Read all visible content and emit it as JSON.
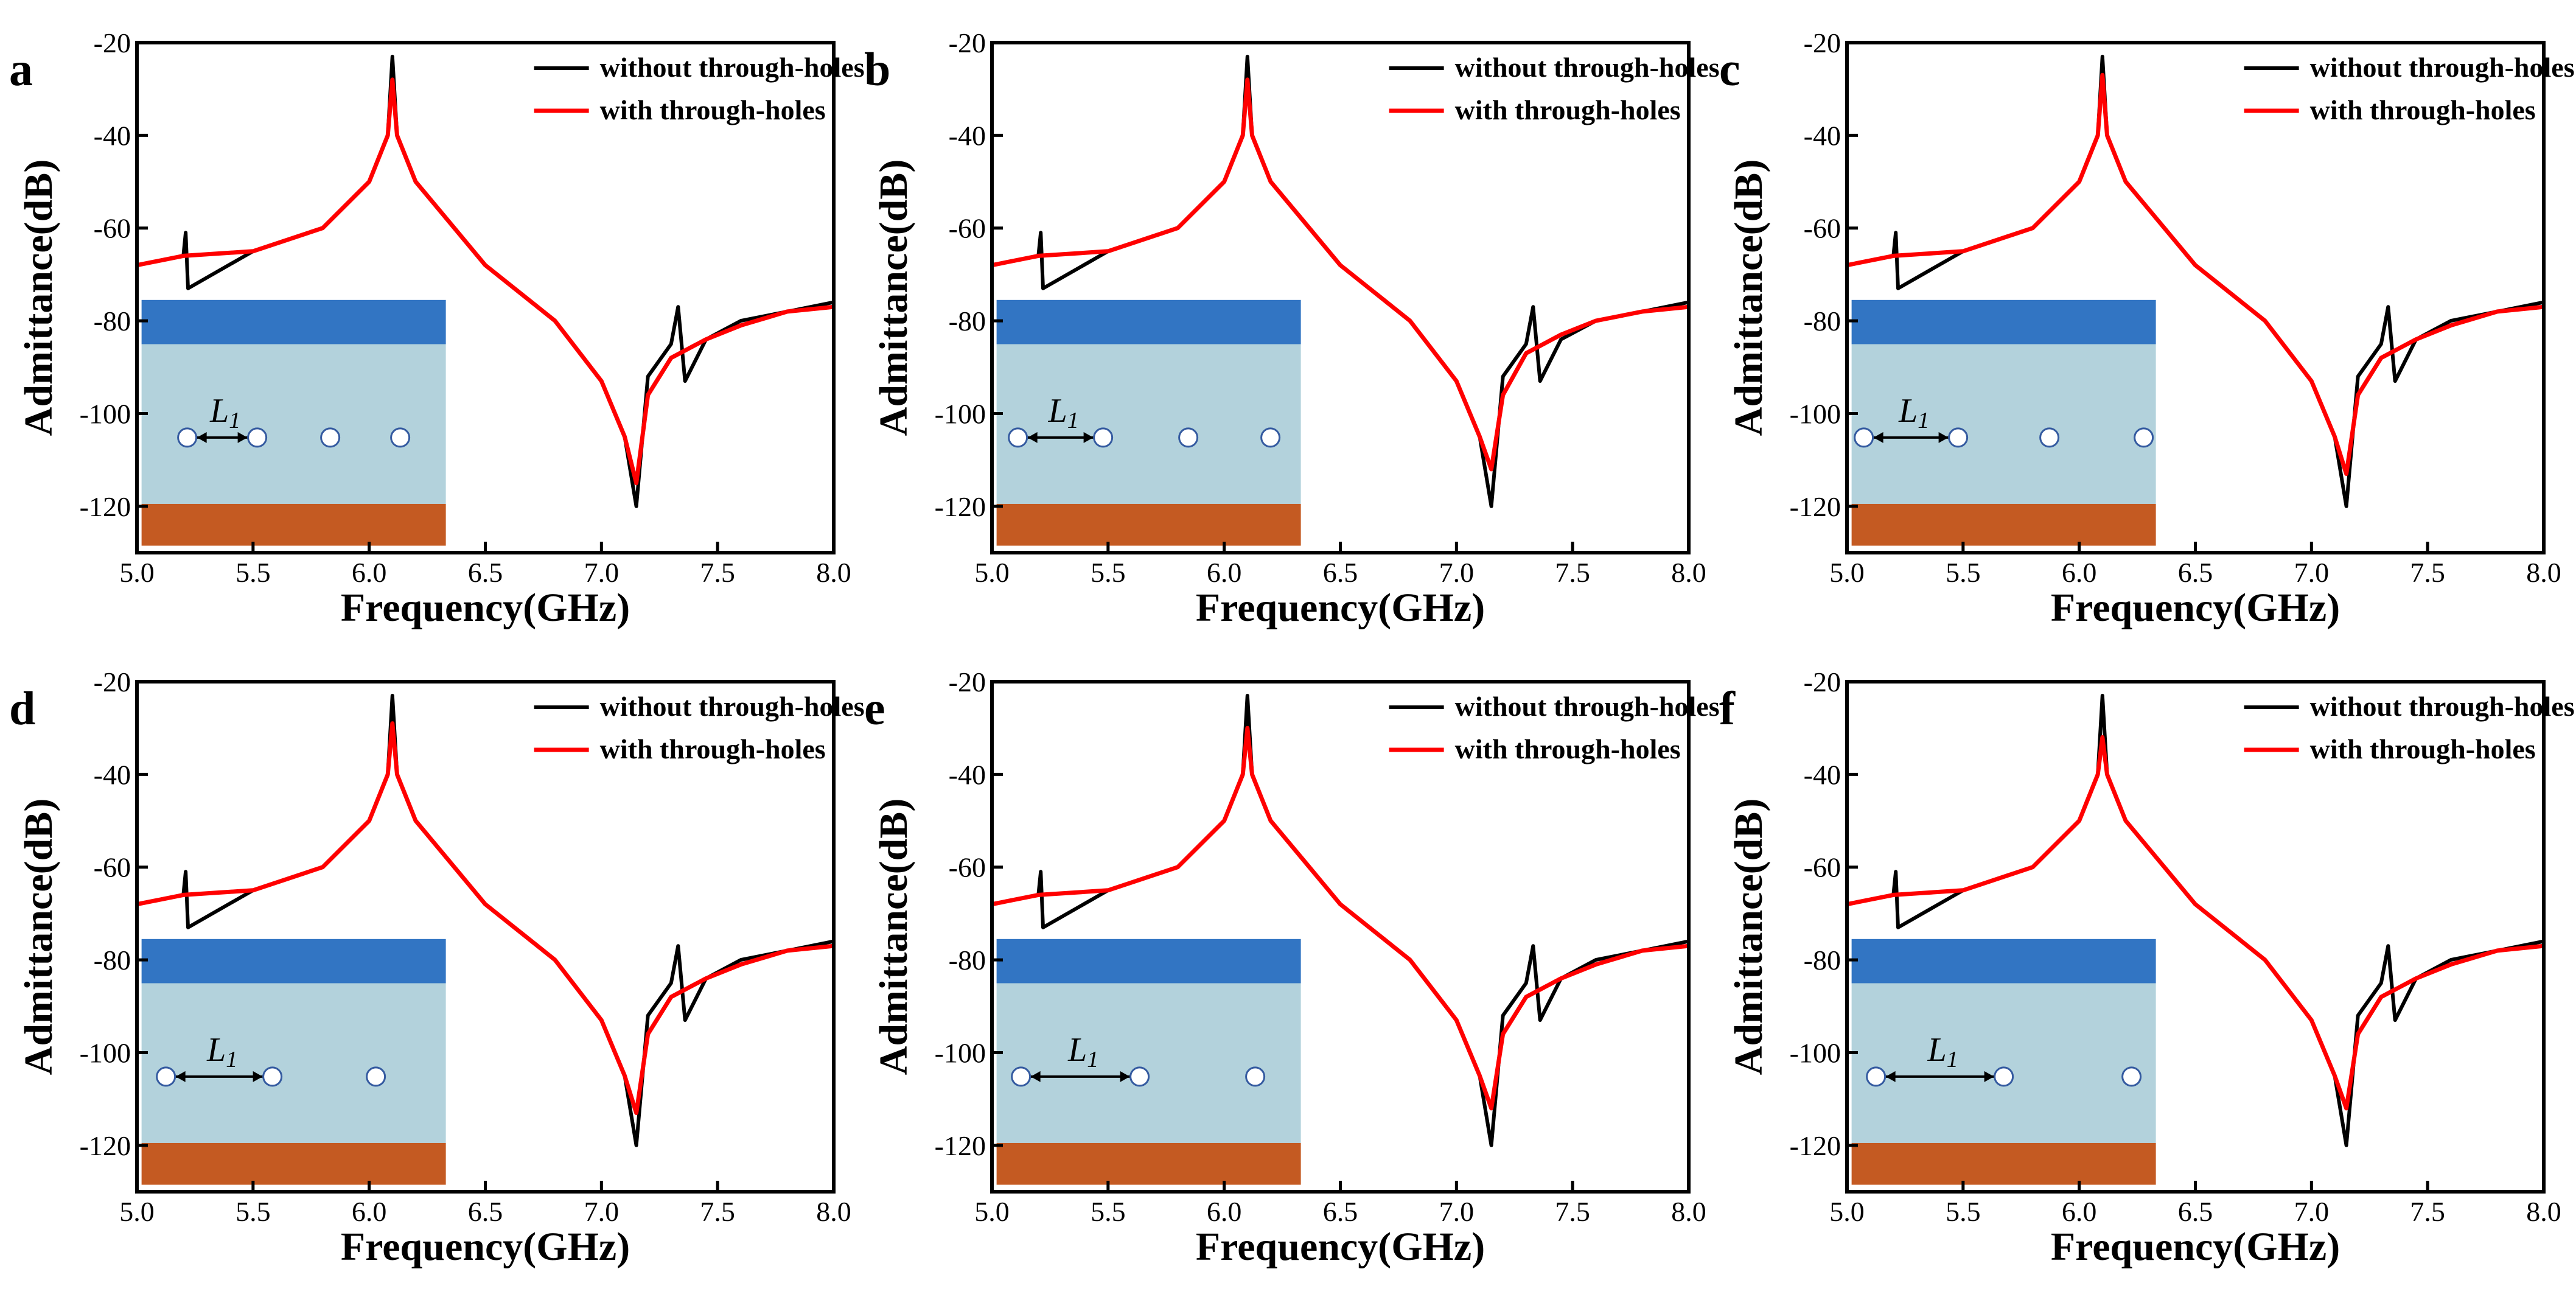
{
  "chart_data": [
    {
      "type": "line",
      "panel_label": "a",
      "xlabel": "Frequency(GHz)",
      "ylabel": "Admittance(dB)",
      "xlim": [
        5.0,
        8.0
      ],
      "ylim": [
        -130,
        -20
      ],
      "xticks": [
        "5.0",
        "5.5",
        "6.0",
        "6.5",
        "7.0",
        "7.5",
        "8.0"
      ],
      "yticks": [
        "-20",
        "-40",
        "-60",
        "-80",
        "-100",
        "-120"
      ],
      "legend": {
        "placement": "top-right",
        "entries": [
          "without through-holes",
          "with through-holes"
        ]
      },
      "series": [
        {
          "name": "without through-holes",
          "color": "#000000",
          "peak_db": -23,
          "x": [
            5.0,
            5.2,
            5.21,
            5.22,
            5.5,
            5.8,
            6.0,
            6.08,
            6.1,
            6.12,
            6.2,
            6.5,
            6.8,
            7.0,
            7.1,
            7.15,
            7.2,
            7.3,
            7.33,
            7.36,
            7.45,
            7.6,
            7.8,
            8.0
          ],
          "y": [
            -68,
            -66,
            -61,
            -73,
            -65,
            -60,
            -50,
            -40,
            -23,
            -40,
            -50,
            -68,
            -80,
            -93,
            -105,
            -120,
            -92,
            -85,
            -77,
            -93,
            -84,
            -80,
            -78,
            -76
          ]
        },
        {
          "name": "with through-holes",
          "color": "#ff0000",
          "peak_db": -28,
          "x": [
            5.0,
            5.2,
            5.5,
            5.8,
            6.0,
            6.08,
            6.1,
            6.12,
            6.2,
            6.5,
            6.8,
            7.0,
            7.1,
            7.15,
            7.2,
            7.3,
            7.45,
            7.6,
            7.8,
            8.0
          ],
          "y": [
            -68,
            -66,
            -65,
            -60,
            -50,
            -40,
            -28,
            -40,
            -50,
            -68,
            -80,
            -93,
            -105,
            -115,
            -96,
            -88,
            -84,
            -81,
            -78,
            -77
          ]
        }
      ],
      "inset": {
        "label": "L",
        "label_sub": "1",
        "hole_count": 4,
        "hole_x_fraction": [
          0.15,
          0.38,
          0.62,
          0.85
        ],
        "arrow_from_hole": 0,
        "arrow_to_hole": 1,
        "colors": {
          "top": "#3275c3",
          "middle": "#b3d2dc",
          "bottom": "#c45a22",
          "hole": "#ffffff",
          "hole_outline": "#345aa0"
        }
      }
    },
    {
      "type": "line",
      "panel_label": "b",
      "xlabel": "Frequency(GHz)",
      "ylabel": "Admittance(dB)",
      "xlim": [
        5.0,
        8.0
      ],
      "ylim": [
        -130,
        -20
      ],
      "xticks": [
        "5.0",
        "5.5",
        "6.0",
        "6.5",
        "7.0",
        "7.5",
        "8.0"
      ],
      "yticks": [
        "-20",
        "-40",
        "-60",
        "-80",
        "-100",
        "-120"
      ],
      "legend": {
        "placement": "top-right",
        "entries": [
          "without through-holes",
          "with through-holes"
        ]
      },
      "series": [
        {
          "name": "without through-holes",
          "color": "#000000",
          "peak_db": -23,
          "x": [
            5.0,
            5.2,
            5.21,
            5.22,
            5.5,
            5.8,
            6.0,
            6.08,
            6.1,
            6.12,
            6.2,
            6.5,
            6.8,
            7.0,
            7.1,
            7.15,
            7.2,
            7.3,
            7.33,
            7.36,
            7.45,
            7.6,
            7.8,
            8.0
          ],
          "y": [
            -68,
            -66,
            -61,
            -73,
            -65,
            -60,
            -50,
            -40,
            -23,
            -40,
            -50,
            -68,
            -80,
            -93,
            -105,
            -120,
            -92,
            -85,
            -77,
            -93,
            -84,
            -80,
            -78,
            -76
          ]
        },
        {
          "name": "with through-holes",
          "color": "#ff0000",
          "peak_db": -28,
          "x": [
            5.0,
            5.2,
            5.5,
            5.8,
            6.0,
            6.08,
            6.1,
            6.12,
            6.2,
            6.5,
            6.8,
            7.0,
            7.1,
            7.15,
            7.2,
            7.3,
            7.45,
            7.6,
            7.8,
            8.0
          ],
          "y": [
            -68,
            -66,
            -65,
            -60,
            -50,
            -40,
            -28,
            -40,
            -50,
            -68,
            -80,
            -93,
            -105,
            -112,
            -96,
            -87,
            -83,
            -80,
            -78,
            -77
          ]
        }
      ],
      "inset": {
        "label": "L",
        "label_sub": "1",
        "hole_count": 4,
        "hole_x_fraction": [
          0.07,
          0.35,
          0.63,
          0.9
        ],
        "arrow_from_hole": 0,
        "arrow_to_hole": 1,
        "colors": {
          "top": "#3275c3",
          "middle": "#b3d2dc",
          "bottom": "#c45a22",
          "hole": "#ffffff",
          "hole_outline": "#345aa0"
        }
      }
    },
    {
      "type": "line",
      "panel_label": "c",
      "xlabel": "Frequency(GHz)",
      "ylabel": "Admittance(dB)",
      "xlim": [
        5.0,
        8.0
      ],
      "ylim": [
        -130,
        -20
      ],
      "xticks": [
        "5.0",
        "5.5",
        "6.0",
        "6.5",
        "7.0",
        "7.5",
        "8.0"
      ],
      "yticks": [
        "-20",
        "-40",
        "-60",
        "-80",
        "-100",
        "-120"
      ],
      "legend": {
        "placement": "top-right",
        "entries": [
          "without through-holes",
          "with through-holes"
        ]
      },
      "series": [
        {
          "name": "without through-holes",
          "color": "#000000",
          "peak_db": -23,
          "x": [
            5.0,
            5.2,
            5.21,
            5.22,
            5.5,
            5.8,
            6.0,
            6.08,
            6.1,
            6.12,
            6.2,
            6.5,
            6.8,
            7.0,
            7.1,
            7.15,
            7.2,
            7.3,
            7.33,
            7.36,
            7.45,
            7.6,
            7.8,
            8.0
          ],
          "y": [
            -68,
            -66,
            -61,
            -73,
            -65,
            -60,
            -50,
            -40,
            -23,
            -40,
            -50,
            -68,
            -80,
            -93,
            -105,
            -120,
            -92,
            -85,
            -77,
            -93,
            -84,
            -80,
            -78,
            -76
          ]
        },
        {
          "name": "with through-holes",
          "color": "#ff0000",
          "peak_db": -27,
          "x": [
            5.0,
            5.2,
            5.5,
            5.8,
            6.0,
            6.08,
            6.1,
            6.12,
            6.2,
            6.5,
            6.8,
            7.0,
            7.1,
            7.15,
            7.2,
            7.3,
            7.45,
            7.6,
            7.8,
            8.0
          ],
          "y": [
            -68,
            -66,
            -65,
            -60,
            -50,
            -40,
            -27,
            -40,
            -50,
            -68,
            -80,
            -93,
            -105,
            -113,
            -96,
            -88,
            -84,
            -81,
            -78,
            -77
          ]
        }
      ],
      "inset": {
        "label": "L",
        "label_sub": "1",
        "hole_count": 4,
        "hole_x_fraction": [
          0.04,
          0.35,
          0.65,
          0.96
        ],
        "arrow_from_hole": 0,
        "arrow_to_hole": 1,
        "colors": {
          "top": "#3275c3",
          "middle": "#b3d2dc",
          "bottom": "#c45a22",
          "hole": "#ffffff",
          "hole_outline": "#345aa0"
        }
      }
    },
    {
      "type": "line",
      "panel_label": "d",
      "xlabel": "Frequency(GHz)",
      "ylabel": "Admittance(dB)",
      "xlim": [
        5.0,
        8.0
      ],
      "ylim": [
        -130,
        -20
      ],
      "xticks": [
        "5.0",
        "5.5",
        "6.0",
        "6.5",
        "7.0",
        "7.5",
        "8.0"
      ],
      "yticks": [
        "-20",
        "-40",
        "-60",
        "-80",
        "-100",
        "-120"
      ],
      "legend": {
        "placement": "top-right",
        "entries": [
          "without through-holes",
          "with through-holes"
        ]
      },
      "series": [
        {
          "name": "without through-holes",
          "color": "#000000",
          "peak_db": -23,
          "x": [
            5.0,
            5.2,
            5.21,
            5.22,
            5.5,
            5.8,
            6.0,
            6.08,
            6.1,
            6.12,
            6.2,
            6.5,
            6.8,
            7.0,
            7.1,
            7.15,
            7.2,
            7.3,
            7.33,
            7.36,
            7.45,
            7.6,
            7.8,
            8.0
          ],
          "y": [
            -68,
            -66,
            -61,
            -73,
            -65,
            -60,
            -50,
            -40,
            -23,
            -40,
            -50,
            -68,
            -80,
            -93,
            -105,
            -120,
            -92,
            -85,
            -77,
            -93,
            -84,
            -80,
            -78,
            -76
          ]
        },
        {
          "name": "with through-holes",
          "color": "#ff0000",
          "peak_db": -29,
          "x": [
            5.0,
            5.2,
            5.5,
            5.8,
            6.0,
            6.08,
            6.1,
            6.12,
            6.2,
            6.5,
            6.8,
            7.0,
            7.1,
            7.15,
            7.2,
            7.3,
            7.45,
            7.6,
            7.8,
            8.0
          ],
          "y": [
            -68,
            -66,
            -65,
            -60,
            -50,
            -40,
            -29,
            -40,
            -50,
            -68,
            -80,
            -93,
            -105,
            -113,
            -96,
            -88,
            -84,
            -81,
            -78,
            -77
          ]
        }
      ],
      "inset": {
        "label": "L",
        "label_sub": "1",
        "hole_count": 3,
        "hole_x_fraction": [
          0.08,
          0.43,
          0.77
        ],
        "arrow_from_hole": 0,
        "arrow_to_hole": 1,
        "colors": {
          "top": "#3275c3",
          "middle": "#b3d2dc",
          "bottom": "#c45a22",
          "hole": "#ffffff",
          "hole_outline": "#345aa0"
        }
      }
    },
    {
      "type": "line",
      "panel_label": "e",
      "xlabel": "Frequency(GHz)",
      "ylabel": "Admittance(dB)",
      "xlim": [
        5.0,
        8.0
      ],
      "ylim": [
        -130,
        -20
      ],
      "xticks": [
        "5.0",
        "5.5",
        "6.0",
        "6.5",
        "7.0",
        "7.5",
        "8.0"
      ],
      "yticks": [
        "-20",
        "-40",
        "-60",
        "-80",
        "-100",
        "-120"
      ],
      "legend": {
        "placement": "top-right",
        "entries": [
          "without through-holes",
          "with through-holes"
        ]
      },
      "series": [
        {
          "name": "without through-holes",
          "color": "#000000",
          "peak_db": -23,
          "x": [
            5.0,
            5.2,
            5.21,
            5.22,
            5.5,
            5.8,
            6.0,
            6.08,
            6.1,
            6.12,
            6.2,
            6.5,
            6.8,
            7.0,
            7.1,
            7.15,
            7.2,
            7.3,
            7.33,
            7.36,
            7.45,
            7.6,
            7.8,
            8.0
          ],
          "y": [
            -68,
            -66,
            -61,
            -73,
            -65,
            -60,
            -50,
            -40,
            -23,
            -40,
            -50,
            -68,
            -80,
            -93,
            -105,
            -120,
            -92,
            -85,
            -77,
            -93,
            -84,
            -80,
            -78,
            -76
          ]
        },
        {
          "name": "with through-holes",
          "color": "#ff0000",
          "peak_db": -30,
          "x": [
            5.0,
            5.2,
            5.5,
            5.8,
            6.0,
            6.08,
            6.1,
            6.12,
            6.2,
            6.5,
            6.8,
            7.0,
            7.1,
            7.15,
            7.2,
            7.3,
            7.45,
            7.6,
            7.8,
            8.0
          ],
          "y": [
            -68,
            -66,
            -65,
            -60,
            -50,
            -40,
            -30,
            -40,
            -50,
            -68,
            -80,
            -93,
            -105,
            -112,
            -96,
            -88,
            -84,
            -81,
            -78,
            -77
          ]
        }
      ],
      "inset": {
        "label": "L",
        "label_sub": "1",
        "hole_count": 3,
        "hole_x_fraction": [
          0.08,
          0.47,
          0.85
        ],
        "arrow_from_hole": 0,
        "arrow_to_hole": 1,
        "colors": {
          "top": "#3275c3",
          "middle": "#b3d2dc",
          "bottom": "#c45a22",
          "hole": "#ffffff",
          "hole_outline": "#345aa0"
        }
      }
    },
    {
      "type": "line",
      "panel_label": "f",
      "xlabel": "Frequency(GHz)",
      "ylabel": "Admittance(dB)",
      "xlim": [
        5.0,
        8.0
      ],
      "ylim": [
        -130,
        -20
      ],
      "xticks": [
        "5.0",
        "5.5",
        "6.0",
        "6.5",
        "7.0",
        "7.5",
        "8.0"
      ],
      "yticks": [
        "-20",
        "-40",
        "-60",
        "-80",
        "-100",
        "-120"
      ],
      "legend": {
        "placement": "top-right",
        "entries": [
          "without through-holes",
          "with through-holes"
        ]
      },
      "series": [
        {
          "name": "without through-holes",
          "color": "#000000",
          "peak_db": -23,
          "x": [
            5.0,
            5.2,
            5.21,
            5.22,
            5.5,
            5.8,
            6.0,
            6.08,
            6.1,
            6.12,
            6.2,
            6.5,
            6.8,
            7.0,
            7.1,
            7.15,
            7.2,
            7.3,
            7.33,
            7.36,
            7.45,
            7.6,
            7.8,
            8.0
          ],
          "y": [
            -68,
            -66,
            -61,
            -73,
            -65,
            -60,
            -50,
            -40,
            -23,
            -40,
            -50,
            -68,
            -80,
            -93,
            -105,
            -120,
            -92,
            -85,
            -77,
            -93,
            -84,
            -80,
            -78,
            -76
          ]
        },
        {
          "name": "with through-holes",
          "color": "#ff0000",
          "peak_db": -32,
          "x": [
            5.0,
            5.2,
            5.5,
            5.8,
            6.0,
            6.08,
            6.1,
            6.12,
            6.2,
            6.5,
            6.8,
            7.0,
            7.1,
            7.15,
            7.2,
            7.3,
            7.45,
            7.6,
            7.8,
            8.0
          ],
          "y": [
            -68,
            -66,
            -65,
            -60,
            -50,
            -40,
            -32,
            -40,
            -50,
            -68,
            -80,
            -93,
            -105,
            -112,
            -96,
            -88,
            -84,
            -81,
            -78,
            -77
          ]
        }
      ],
      "inset": {
        "label": "L",
        "label_sub": "1",
        "hole_count": 3,
        "hole_x_fraction": [
          0.08,
          0.5,
          0.92
        ],
        "arrow_from_hole": 0,
        "arrow_to_hole": 1,
        "colors": {
          "top": "#3275c3",
          "middle": "#b3d2dc",
          "bottom": "#c45a22",
          "hole": "#ffffff",
          "hole_outline": "#345aa0"
        }
      }
    }
  ]
}
